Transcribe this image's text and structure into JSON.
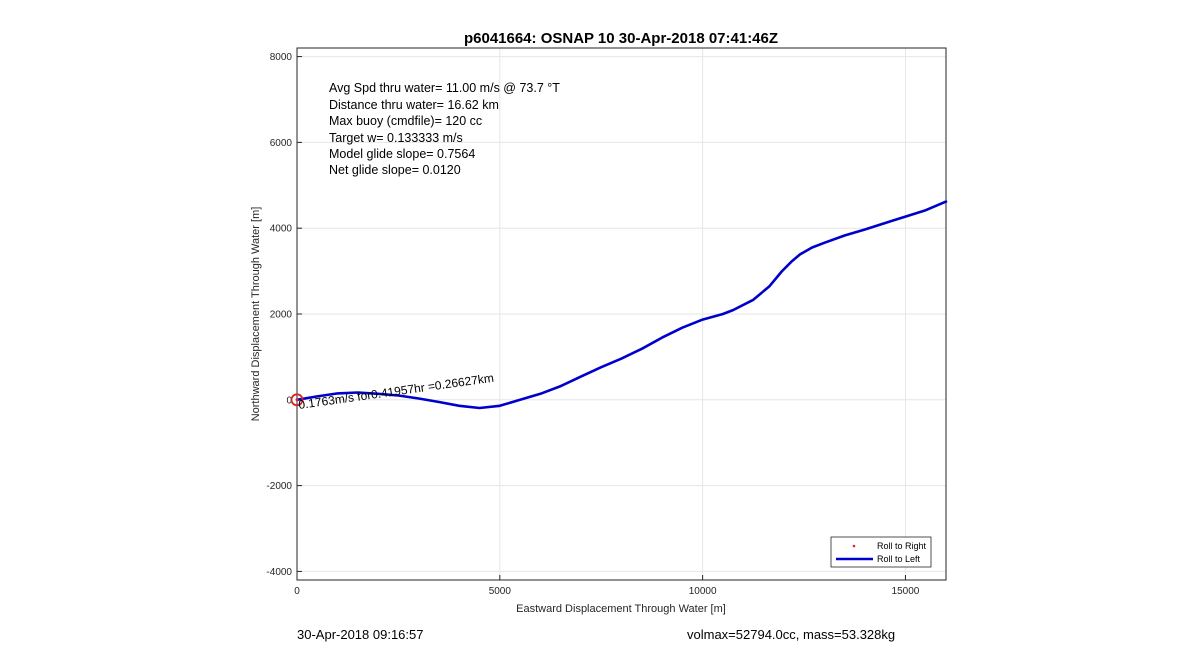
{
  "chart_data": {
    "type": "line",
    "title": "p6041664: OSNAP 10 30-Apr-2018 07:41:46Z",
    "xlabel": "Eastward Displacement Through Water [m]",
    "ylabel": "Northward Displacement Through Water [m]",
    "xlim": [
      0,
      16000
    ],
    "ylim": [
      -4200,
      8200
    ],
    "xticks": [
      0,
      5000,
      10000,
      15000
    ],
    "yticks": [
      -4000,
      -2000,
      0,
      2000,
      4000,
      6000,
      8000
    ],
    "grid": true,
    "legend_position": "bottom-right",
    "info_lines": [
      "Avg Spd thru water= 11.00 m/s @  73.7 °T",
      "Distance thru water= 16.62 km",
      "Max buoy (cmdfile)= 120 cc",
      "Target w= 0.133333 m/s",
      "Model glide slope= 0.7564",
      "Net glide slope= 0.0120"
    ],
    "annotation": "0.1763m/s for0.41957hr =0.26627km",
    "series": [
      {
        "name": "Roll to Right",
        "color": "#d62728",
        "marker": "dot",
        "x": [
          0
        ],
        "y": [
          0
        ]
      },
      {
        "name": "Roll to Left",
        "color": "#0000cc",
        "marker": "line",
        "x": [
          0,
          500,
          1000,
          1500,
          2000,
          2500,
          3000,
          3500,
          4000,
          4500,
          5000,
          5500,
          6000,
          6500,
          7000,
          7500,
          8000,
          8500,
          9000,
          9500,
          10000,
          10500,
          10750,
          11250,
          11650,
          11950,
          12200,
          12400,
          12700,
          13000,
          13500,
          14000,
          14500,
          15000,
          15500,
          16000
        ],
        "y": [
          0,
          80,
          150,
          170,
          140,
          100,
          30,
          -50,
          -140,
          -190,
          -140,
          0,
          140,
          320,
          540,
          760,
          960,
          1190,
          1450,
          1680,
          1870,
          2000,
          2090,
          2330,
          2650,
          2990,
          3230,
          3390,
          3550,
          3660,
          3830,
          3970,
          4120,
          4270,
          4420,
          4620
        ]
      }
    ],
    "start_marker": {
      "x": 0,
      "y": 0,
      "color": "#d62728"
    }
  },
  "footer": {
    "left": "30-Apr-2018 09:16:57",
    "right": "volmax=52794.0cc, mass=53.328kg"
  }
}
